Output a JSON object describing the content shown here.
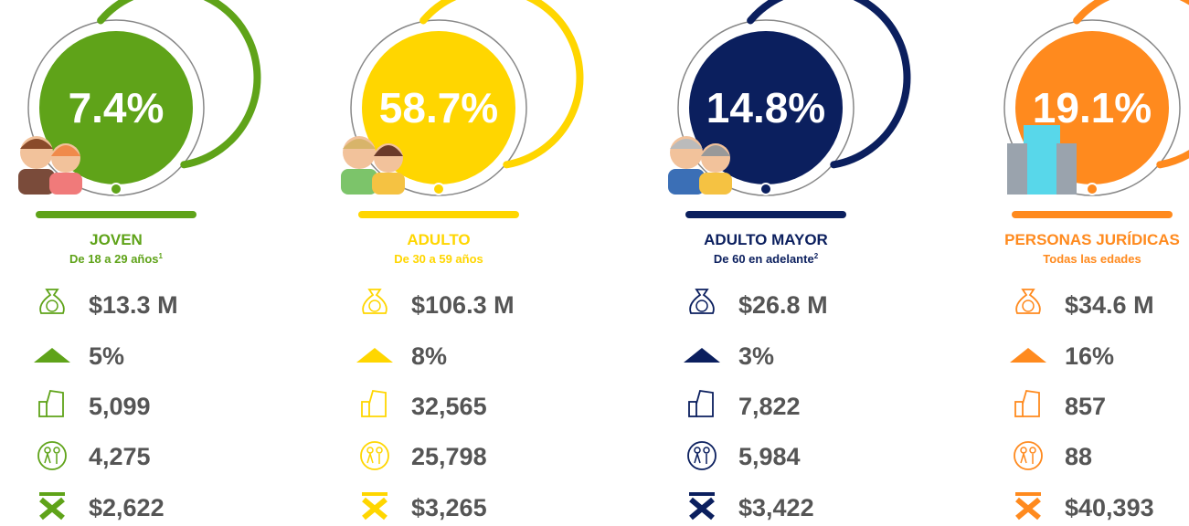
{
  "segments": [
    {
      "percent": "7.4%",
      "title": "JOVEN",
      "subtitle": "De 18 a 29 años",
      "footnote": "1",
      "color": "#5fa319",
      "stats": [
        "$13.3 M",
        "5%",
        "5,099",
        "4,275",
        "$2,622"
      ]
    },
    {
      "percent": "58.7%",
      "title": "ADULTO",
      "subtitle": "De 30 a 59 años",
      "color": "#ffd600",
      "stats": [
        "$106.3 M",
        "8%",
        "32,565",
        "25,798",
        "$3,265"
      ]
    },
    {
      "percent": "14.8%",
      "title": "ADULTO MAYOR",
      "subtitle": "De 60 en adelante",
      "footnote": "2",
      "color": "#0b1f5e",
      "stats": [
        "$26.8 M",
        "3%",
        "7,822",
        "5,984",
        "$3,422"
      ]
    },
    {
      "percent": "19.1%",
      "title": "PERSONAS JURÍDICAS",
      "subtitle": "Todas las edades",
      "color": "#ff8a1e",
      "stats": [
        "$34.6 M",
        "16%",
        "857",
        "88",
        "$40,393"
      ]
    }
  ]
}
